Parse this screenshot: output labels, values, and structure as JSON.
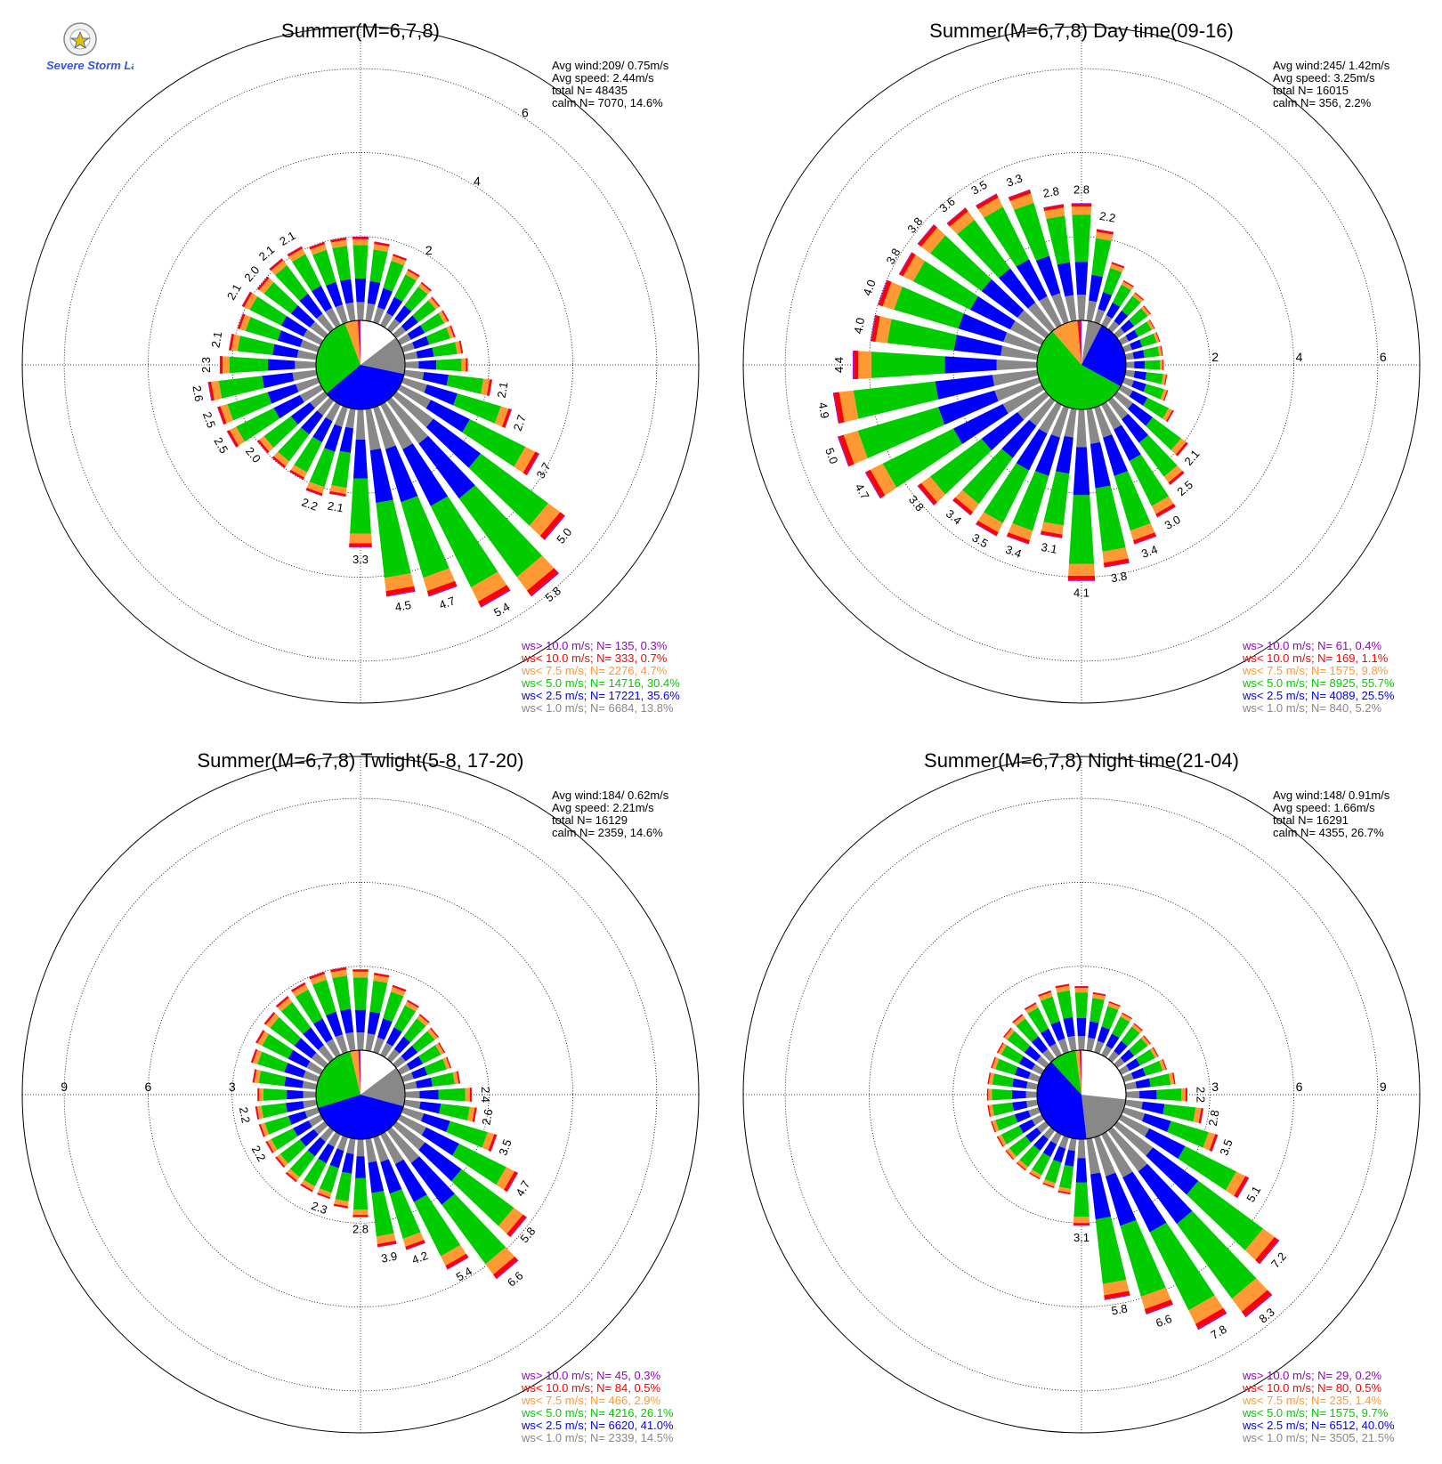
{
  "logo": {
    "text": "Severe Storm Lab."
  },
  "legend_colors": [
    "#9900cc",
    "#ff0000",
    "#ff9933",
    "#00cc00",
    "#0000ff",
    "#888888"
  ],
  "chart_data": [
    {
      "type": "windrose",
      "title": "Summer(M=6,7,8)",
      "ring_labels": [
        "2",
        "4",
        "6"
      ],
      "rmax": 7,
      "label_quadrant": "NE",
      "stats": [
        "Avg wind:209/ 0.75m/s",
        "Avg speed: 2.44m/s",
        "total N=      48435",
        "calm N=   7070,  14.6%"
      ],
      "legend": [
        {
          "label": "ws> 10.0 m/s; N=    135,  0.3%",
          "color": "#9900cc"
        },
        {
          "label": "ws< 10.0 m/s; N=    333,  0.7%",
          "color": "#ff0000"
        },
        {
          "label": "ws<  7.5 m/s; N=   2276,  4.7%",
          "color": "#ff9933"
        },
        {
          "label": "ws<  5.0 m/s; N= 14716, 30.4%",
          "color": "#00cc00"
        },
        {
          "label": "ws<  2.5 m/s; N= 17221, 35.6%",
          "color": "#0000ff"
        },
        {
          "label": "ws<  1.0 m/s; N=   6684, 13.8%",
          "color": "#888888"
        }
      ],
      "pie": [
        13.8,
        35.6,
        30.4,
        4.7,
        0.7,
        0.3
      ],
      "bars": [
        {
          "dir": 0,
          "value": 2.0
        },
        {
          "dir": 10,
          "value": 1.9
        },
        {
          "dir": 20,
          "value": 1.7
        },
        {
          "dir": 30,
          "value": 1.5
        },
        {
          "dir": 40,
          "value": 1.4
        },
        {
          "dir": 50,
          "value": 1.3
        },
        {
          "dir": 60,
          "value": 1.3
        },
        {
          "dir": 70,
          "value": 1.3
        },
        {
          "dir": 80,
          "value": 1.4
        },
        {
          "dir": 90,
          "value": 1.5
        },
        {
          "dir": 100,
          "value": 2.1,
          "label": "2.1"
        },
        {
          "dir": 110,
          "value": 2.7,
          "label": "2.7"
        },
        {
          "dir": 120,
          "value": 3.7,
          "label": "3.7"
        },
        {
          "dir": 130,
          "value": 5.0,
          "label": "5.0"
        },
        {
          "dir": 140,
          "value": 5.8,
          "label": "5.8"
        },
        {
          "dir": 150,
          "value": 5.4,
          "label": "5.4"
        },
        {
          "dir": 160,
          "value": 4.7,
          "label": "4.7"
        },
        {
          "dir": 170,
          "value": 4.5,
          "label": "4.5"
        },
        {
          "dir": 180,
          "value": 3.3,
          "label": "3.3"
        },
        {
          "dir": 190,
          "value": 2.1,
          "label": "2.1"
        },
        {
          "dir": 200,
          "value": 2.2,
          "label": "2.2"
        },
        {
          "dir": 210,
          "value": 2.0
        },
        {
          "dir": 220,
          "value": 2.0
        },
        {
          "dir": 230,
          "value": 2.0,
          "label": "2.0"
        },
        {
          "dir": 240,
          "value": 2.5,
          "label": "2.5"
        },
        {
          "dir": 250,
          "value": 2.5,
          "label": "2.5"
        },
        {
          "dir": 260,
          "value": 2.6,
          "label": "2.6"
        },
        {
          "dir": 270,
          "value": 2.3,
          "label": "2.3"
        },
        {
          "dir": 280,
          "value": 2.1,
          "label": "2.1"
        },
        {
          "dir": 290,
          "value": 2.0
        },
        {
          "dir": 300,
          "value": 2.1,
          "label": "2.1"
        },
        {
          "dir": 310,
          "value": 2.0,
          "label": "2.0"
        },
        {
          "dir": 320,
          "value": 2.1,
          "label": "2.1"
        },
        {
          "dir": 330,
          "value": 2.1,
          "label": "2.1"
        },
        {
          "dir": 340,
          "value": 2.0
        },
        {
          "dir": 350,
          "value": 2.0
        }
      ]
    },
    {
      "type": "windrose",
      "title": "Summer(M=6,7,8) Day time(09-16)",
      "ring_labels": [
        "2",
        "4",
        "6"
      ],
      "rmax": 7,
      "label_quadrant": "E",
      "stats": [
        "Avg wind:245/ 1.42m/s",
        "Avg speed: 3.25m/s",
        "total N=      16015",
        "calm N=    356,   2.2%"
      ],
      "legend": [
        {
          "label": "ws> 10.0 m/s; N=     61,  0.4%",
          "color": "#9900cc"
        },
        {
          "label": "ws< 10.0 m/s; N=    169,  1.1%",
          "color": "#ff0000"
        },
        {
          "label": "ws<  7.5 m/s; N=   1575,  9.8%",
          "color": "#ff9933"
        },
        {
          "label": "ws<  5.0 m/s; N=   8925, 55.7%",
          "color": "#00cc00"
        },
        {
          "label": "ws<  2.5 m/s; N=   4089, 25.5%",
          "color": "#0000ff"
        },
        {
          "label": "ws<  1.0 m/s; N=    840,  5.2%",
          "color": "#888888"
        }
      ],
      "pie": [
        5.2,
        25.5,
        55.7,
        9.8,
        1.1,
        0.4
      ],
      "bars": [
        {
          "dir": 0,
          "value": 2.8,
          "label": "2.8"
        },
        {
          "dir": 10,
          "value": 2.2,
          "label": "2.2"
        },
        {
          "dir": 20,
          "value": 1.5
        },
        {
          "dir": 30,
          "value": 1.2
        },
        {
          "dir": 40,
          "value": 1.1
        },
        {
          "dir": 50,
          "value": 1.0
        },
        {
          "dir": 60,
          "value": 0.9
        },
        {
          "dir": 70,
          "value": 0.9
        },
        {
          "dir": 80,
          "value": 0.9
        },
        {
          "dir": 90,
          "value": 0.9
        },
        {
          "dir": 100,
          "value": 1.0
        },
        {
          "dir": 110,
          "value": 1.1
        },
        {
          "dir": 120,
          "value": 1.4
        },
        {
          "dir": 130,
          "value": 2.1,
          "label": "2.1"
        },
        {
          "dir": 140,
          "value": 2.5,
          "label": "2.5"
        },
        {
          "dir": 150,
          "value": 3.0,
          "label": "3.0"
        },
        {
          "dir": 160,
          "value": 3.4,
          "label": "3.4"
        },
        {
          "dir": 170,
          "value": 3.8,
          "label": "3.8"
        },
        {
          "dir": 180,
          "value": 4.1,
          "label": "4.1"
        },
        {
          "dir": 190,
          "value": 3.1,
          "label": "3.1"
        },
        {
          "dir": 200,
          "value": 3.4,
          "label": "3.4"
        },
        {
          "dir": 210,
          "value": 3.5,
          "label": "3.5"
        },
        {
          "dir": 220,
          "value": 3.4,
          "label": "3.4"
        },
        {
          "dir": 230,
          "value": 3.8,
          "label": "3.8"
        },
        {
          "dir": 240,
          "value": 4.7,
          "label": "4.7"
        },
        {
          "dir": 250,
          "value": 5.0,
          "label": "5.0"
        },
        {
          "dir": 260,
          "value": 4.9,
          "label": "4.9"
        },
        {
          "dir": 270,
          "value": 4.4,
          "label": "4.4"
        },
        {
          "dir": 280,
          "value": 4.0,
          "label": "4.0"
        },
        {
          "dir": 290,
          "value": 4.0,
          "label": "4.0"
        },
        {
          "dir": 300,
          "value": 3.8,
          "label": "3.8"
        },
        {
          "dir": 310,
          "value": 3.8,
          "label": "3.8"
        },
        {
          "dir": 320,
          "value": 3.6,
          "label": "3.6"
        },
        {
          "dir": 330,
          "value": 3.5,
          "label": "3.5"
        },
        {
          "dir": 340,
          "value": 3.3,
          "label": "3.3"
        },
        {
          "dir": 350,
          "value": 2.8,
          "label": "2.8"
        }
      ]
    },
    {
      "type": "windrose",
      "title": "Summer(M=6,7,8) Twlight(5-8, 17-20)",
      "ring_labels": [
        "3",
        "6",
        "9"
      ],
      "rmax": 10.5,
      "label_quadrant": "W",
      "stats": [
        "Avg wind:184/ 0.62m/s",
        "Avg speed: 2.21m/s",
        "total N=      16129",
        "calm N=   2359,  14.6%"
      ],
      "legend": [
        {
          "label": "ws> 10.0 m/s; N=     45,  0.3%",
          "color": "#9900cc"
        },
        {
          "label": "ws< 10.0 m/s; N=     84,  0.5%",
          "color": "#ff0000"
        },
        {
          "label": "ws<  7.5 m/s; N=    466,  2.9%",
          "color": "#ff9933"
        },
        {
          "label": "ws<  5.0 m/s; N=   4216, 26.1%",
          "color": "#00cc00"
        },
        {
          "label": "ws<  2.5 m/s; N=   6620, 41.0%",
          "color": "#0000ff"
        },
        {
          "label": "ws<  1.0 m/s; N=   2339, 14.5%",
          "color": "#888888"
        }
      ],
      "pie": [
        14.5,
        41.0,
        26.1,
        2.9,
        0.5,
        0.3
      ],
      "bars": [
        {
          "dir": 0,
          "value": 2.9
        },
        {
          "dir": 10,
          "value": 2.8
        },
        {
          "dir": 20,
          "value": 2.5
        },
        {
          "dir": 30,
          "value": 2.2
        },
        {
          "dir": 40,
          "value": 2.0
        },
        {
          "dir": 50,
          "value": 1.9
        },
        {
          "dir": 60,
          "value": 1.8
        },
        {
          "dir": 70,
          "value": 1.8
        },
        {
          "dir": 80,
          "value": 2.0
        },
        {
          "dir": 90,
          "value": 2.4,
          "label": "2.4"
        },
        {
          "dir": 100,
          "value": 2.6,
          "label": "2.6"
        },
        {
          "dir": 110,
          "value": 3.5,
          "label": "3.5"
        },
        {
          "dir": 120,
          "value": 4.7,
          "label": "4.7"
        },
        {
          "dir": 130,
          "value": 5.8,
          "label": "5.8"
        },
        {
          "dir": 140,
          "value": 6.6,
          "label": "6.6"
        },
        {
          "dir": 150,
          "value": 5.4,
          "label": "5.4"
        },
        {
          "dir": 160,
          "value": 4.2,
          "label": "4.2"
        },
        {
          "dir": 170,
          "value": 3.9,
          "label": "3.9"
        },
        {
          "dir": 180,
          "value": 2.8,
          "label": "2.8"
        },
        {
          "dir": 190,
          "value": 2.5
        },
        {
          "dir": 200,
          "value": 2.3,
          "label": "2.3"
        },
        {
          "dir": 210,
          "value": 2.3
        },
        {
          "dir": 220,
          "value": 2.3
        },
        {
          "dir": 230,
          "value": 2.2
        },
        {
          "dir": 240,
          "value": 2.2,
          "label": "2.2"
        },
        {
          "dir": 250,
          "value": 2.2
        },
        {
          "dir": 260,
          "value": 2.2,
          "label": "2.2"
        },
        {
          "dir": 270,
          "value": 2.1
        },
        {
          "dir": 280,
          "value": 2.3
        },
        {
          "dir": 290,
          "value": 2.5
        },
        {
          "dir": 300,
          "value": 2.6
        },
        {
          "dir": 310,
          "value": 2.7
        },
        {
          "dir": 320,
          "value": 2.8
        },
        {
          "dir": 330,
          "value": 2.9
        },
        {
          "dir": 340,
          "value": 3.0
        },
        {
          "dir": 350,
          "value": 3.0
        }
      ]
    },
    {
      "type": "windrose",
      "title": "Summer(M=6,7,8) Night time(21-04)",
      "ring_labels": [
        "3",
        "6",
        "9"
      ],
      "rmax": 10.5,
      "label_quadrant": "E",
      "stats": [
        "Avg wind:148/ 0.91m/s",
        "Avg speed: 1.66m/s",
        "total N=      16291",
        "calm N=   4355,  26.7%"
      ],
      "legend": [
        {
          "label": "ws> 10.0 m/s; N=     29,  0.2%",
          "color": "#9900cc"
        },
        {
          "label": "ws< 10.0 m/s; N=     80,  0.5%",
          "color": "#ff0000"
        },
        {
          "label": "ws<  7.5 m/s; N=    235,  1.4%",
          "color": "#ff9933"
        },
        {
          "label": "ws<  5.0 m/s; N=   1575,  9.7%",
          "color": "#00cc00"
        },
        {
          "label": "ws<  2.5 m/s; N=   6512, 40.0%",
          "color": "#0000ff"
        },
        {
          "label": "ws<  1.0 m/s; N=   3505, 21.5%",
          "color": "#888888"
        }
      ],
      "pie": [
        21.5,
        40.0,
        9.7,
        1.4,
        0.5,
        0.2
      ],
      "bars": [
        {
          "dir": 0,
          "value": 2.3
        },
        {
          "dir": 10,
          "value": 2.1
        },
        {
          "dir": 20,
          "value": 1.9
        },
        {
          "dir": 30,
          "value": 1.7
        },
        {
          "dir": 40,
          "value": 1.6
        },
        {
          "dir": 50,
          "value": 1.5
        },
        {
          "dir": 60,
          "value": 1.5
        },
        {
          "dir": 70,
          "value": 1.6
        },
        {
          "dir": 80,
          "value": 1.8
        },
        {
          "dir": 90,
          "value": 2.2,
          "label": "2.2"
        },
        {
          "dir": 100,
          "value": 2.8,
          "label": "2.8"
        },
        {
          "dir": 110,
          "value": 3.5,
          "label": "3.5"
        },
        {
          "dir": 120,
          "value": 5.1,
          "label": "5.1"
        },
        {
          "dir": 130,
          "value": 7.2,
          "label": "7.2"
        },
        {
          "dir": 140,
          "value": 8.3,
          "label": "8.3"
        },
        {
          "dir": 150,
          "value": 7.8,
          "label": "7.8"
        },
        {
          "dir": 160,
          "value": 6.6,
          "label": "6.6"
        },
        {
          "dir": 170,
          "value": 5.8,
          "label": "5.8"
        },
        {
          "dir": 180,
          "value": 3.1,
          "label": "3.1"
        },
        {
          "dir": 190,
          "value": 2.0
        },
        {
          "dir": 200,
          "value": 1.9
        },
        {
          "dir": 210,
          "value": 1.8
        },
        {
          "dir": 220,
          "value": 1.8
        },
        {
          "dir": 230,
          "value": 1.8
        },
        {
          "dir": 240,
          "value": 1.8
        },
        {
          "dir": 250,
          "value": 1.8
        },
        {
          "dir": 260,
          "value": 1.8
        },
        {
          "dir": 270,
          "value": 1.8
        },
        {
          "dir": 280,
          "value": 1.8
        },
        {
          "dir": 290,
          "value": 1.8
        },
        {
          "dir": 300,
          "value": 1.8
        },
        {
          "dir": 310,
          "value": 1.9
        },
        {
          "dir": 320,
          "value": 2.0
        },
        {
          "dir": 330,
          "value": 2.1
        },
        {
          "dir": 340,
          "value": 2.3
        },
        {
          "dir": 350,
          "value": 2.4
        }
      ]
    }
  ]
}
